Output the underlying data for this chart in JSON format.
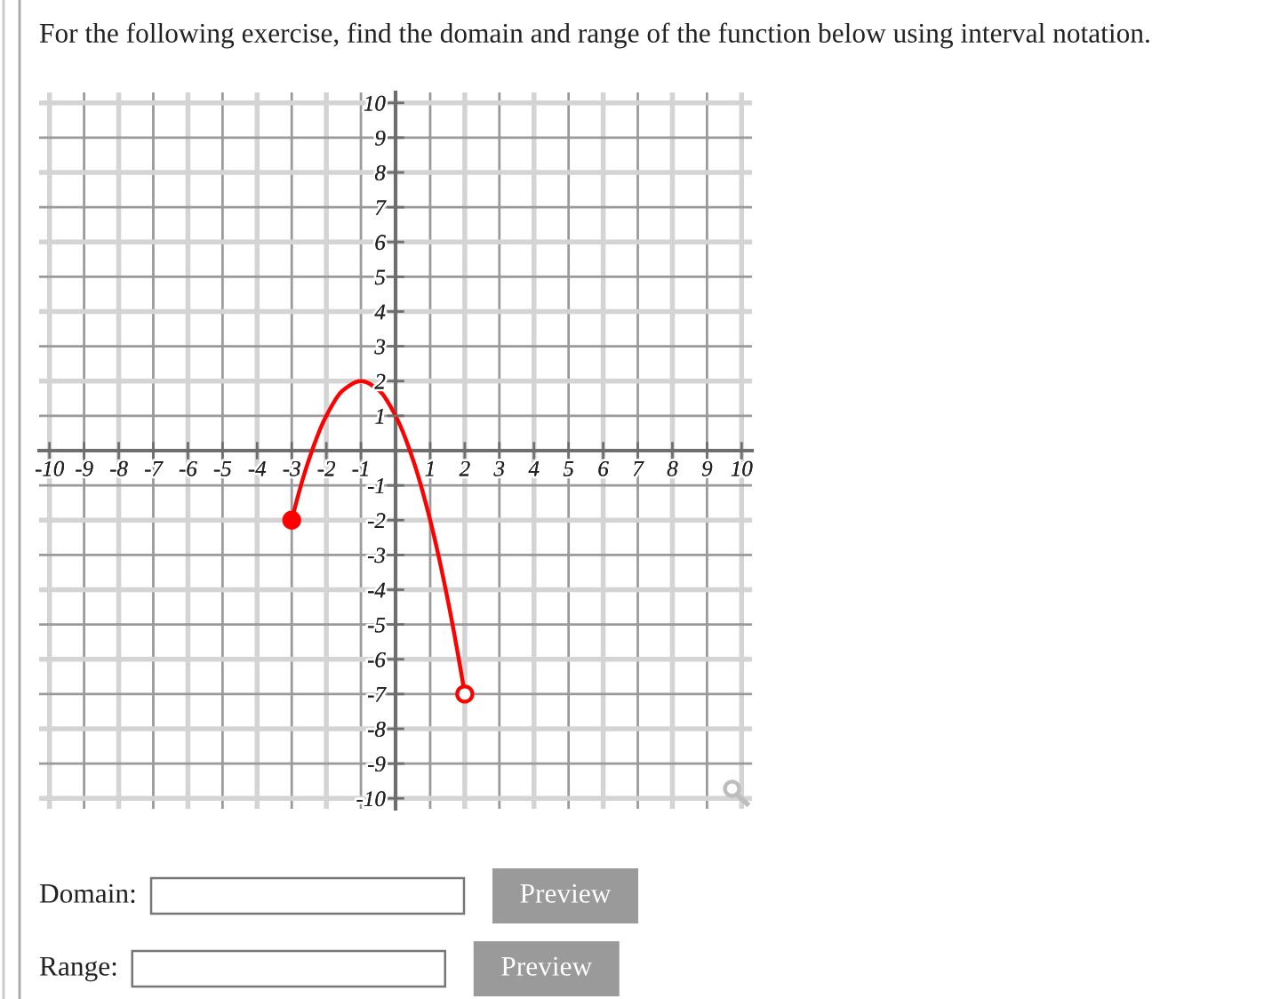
{
  "chart_data": {
    "type": "line",
    "title": "For the following exercise, find the domain and range of the function below using interval notation.",
    "x": [
      -3,
      -2.5,
      -2,
      -1.5,
      -1,
      -0.5,
      0,
      0.5,
      1,
      1.5,
      2
    ],
    "series": [
      {
        "color": "#ff0000",
        "marker": "none",
        "line_style": "solid",
        "values": [
          -2,
          -0.25,
          1,
          1.75,
          2,
          1.75,
          1,
          -0.25,
          -2,
          -4.25,
          -7
        ]
      },
      {
        "type": "scatter",
        "x": [
          -3,
          2
        ],
        "values": [
          -2,
          -7
        ],
        "color": "#ff0000",
        "colors": [
          "#ff0000",
          "#ffffff"
        ],
        "marker": "circle"
      }
    ],
    "xlim": [
      -10.3,
      10.3
    ],
    "ylim": [
      -10.3,
      10.3
    ],
    "xticks": [
      -10,
      -9,
      -8,
      -7,
      -6,
      -5,
      -4,
      -3,
      -2,
      -1,
      1,
      2,
      3,
      4,
      5,
      6,
      7,
      8,
      9,
      10
    ],
    "yticks": [
      -10,
      -9,
      -8,
      -7,
      -6,
      -5,
      -4,
      -3,
      -2,
      -1,
      1,
      2,
      3,
      4,
      5,
      6,
      7,
      8,
      9,
      10
    ],
    "grid": true,
    "annotations": [
      "Domain:",
      "Preview",
      "Range:",
      "Preview"
    ]
  }
}
